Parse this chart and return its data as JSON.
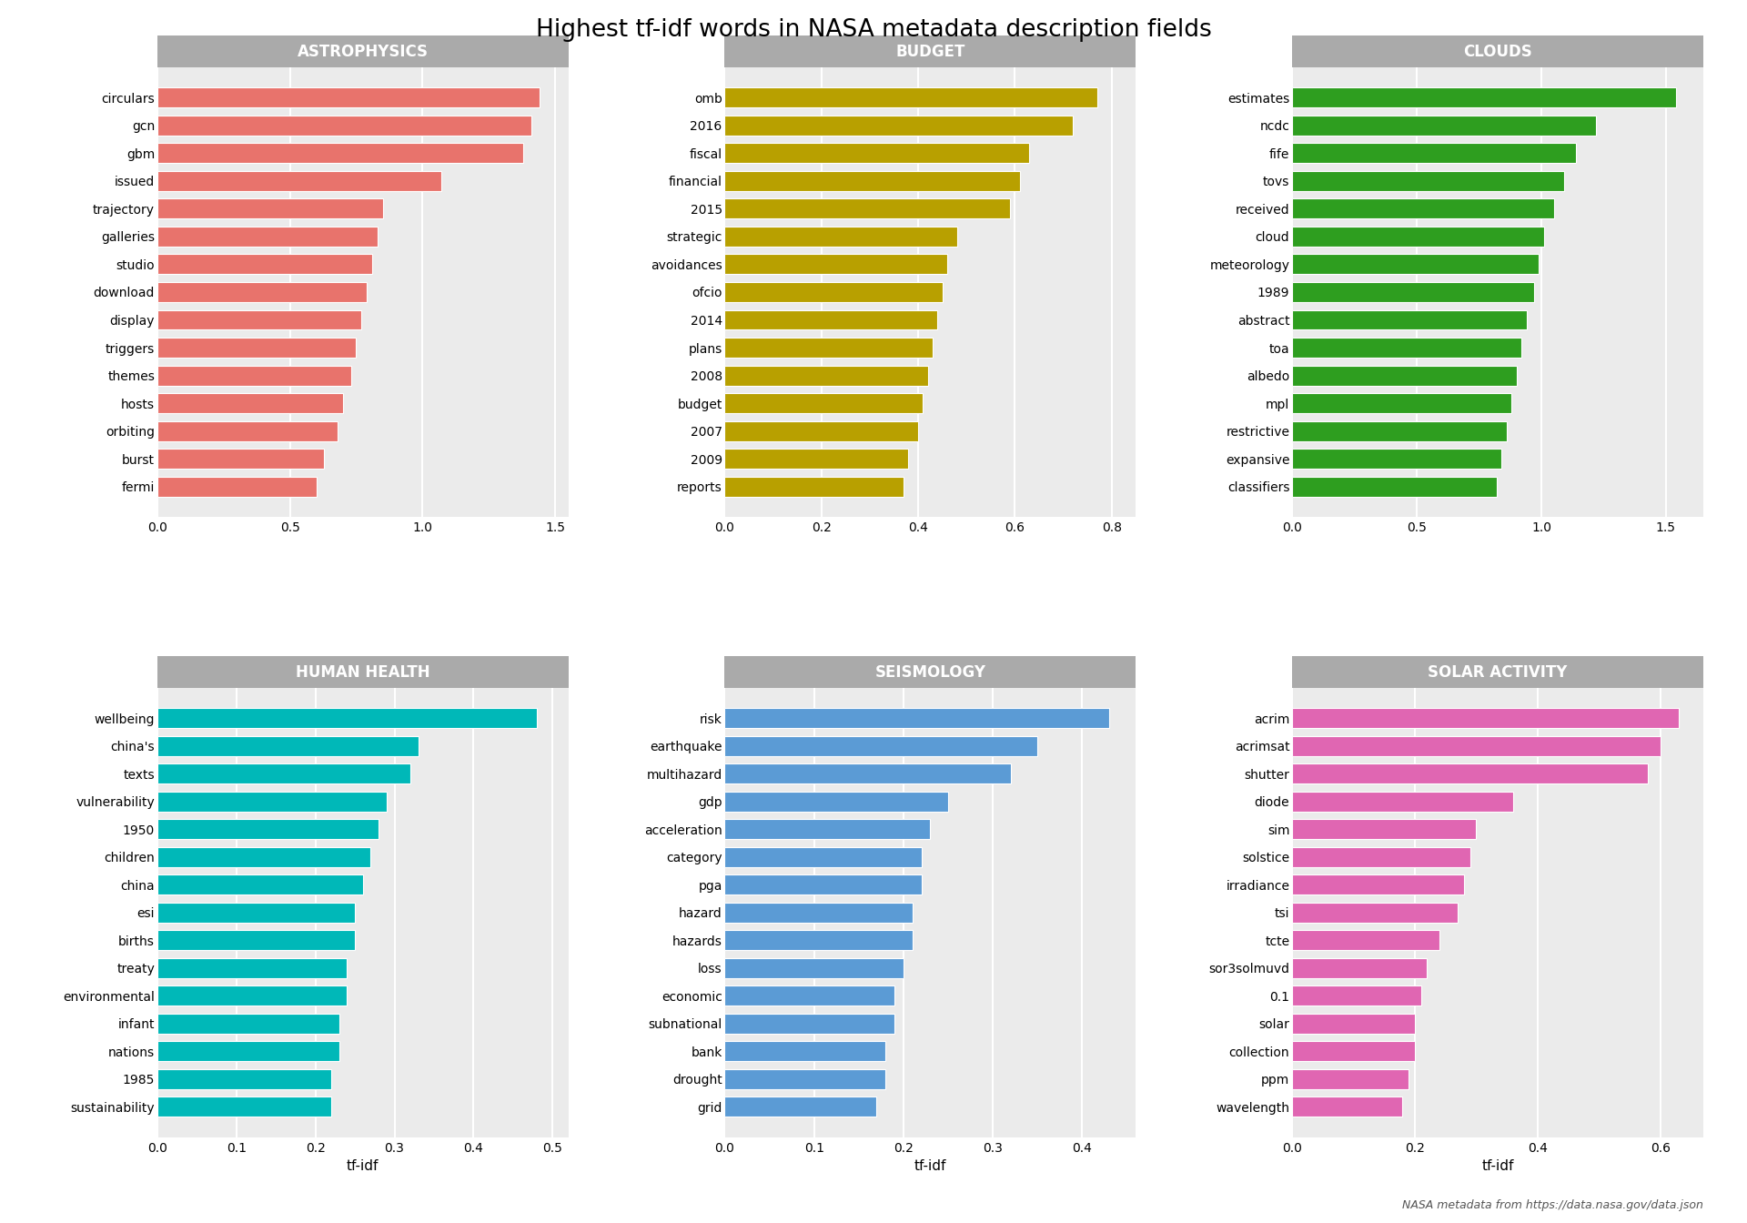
{
  "title": "Highest tf-idf words in NASA metadata description fields",
  "xlabel": "tf-idf",
  "footnote": "NASA metadata from https://data.nasa.gov/data.json",
  "subplots": [
    {
      "title": "ASTROPHYSICS",
      "color": "#E8736C",
      "xlim": [
        0,
        1.55
      ],
      "xticks": [
        0.0,
        0.5,
        1.0,
        1.5
      ],
      "words": [
        "fermi",
        "burst",
        "orbiting",
        "hosts",
        "themes",
        "triggers",
        "display",
        "download",
        "studio",
        "galleries",
        "trajectory",
        "issued",
        "gbm",
        "gcn",
        "circulars"
      ],
      "values": [
        0.6,
        0.63,
        0.68,
        0.7,
        0.73,
        0.75,
        0.77,
        0.79,
        0.81,
        0.83,
        0.85,
        1.07,
        1.38,
        1.41,
        1.44
      ]
    },
    {
      "title": "BUDGET",
      "color": "#B8A000",
      "xlim": [
        0,
        0.85
      ],
      "xticks": [
        0.0,
        0.2,
        0.4,
        0.6,
        0.8
      ],
      "words": [
        "reports",
        "2009",
        "2007",
        "budget",
        "2008",
        "plans",
        "2014",
        "ofcio",
        "avoidances",
        "strategic",
        "2015",
        "financial",
        "fiscal",
        "2016",
        "omb"
      ],
      "values": [
        0.37,
        0.38,
        0.4,
        0.41,
        0.42,
        0.43,
        0.44,
        0.45,
        0.46,
        0.48,
        0.59,
        0.61,
        0.63,
        0.72,
        0.77
      ]
    },
    {
      "title": "CLOUDS",
      "color": "#2E9E1F",
      "xlim": [
        0,
        1.65
      ],
      "xticks": [
        0.0,
        0.5,
        1.0,
        1.5
      ],
      "words": [
        "classifiers",
        "expansive",
        "restrictive",
        "mpl",
        "albedo",
        "toa",
        "abstract",
        "1989",
        "meteorology",
        "cloud",
        "received",
        "tovs",
        "fife",
        "ncdc",
        "estimates"
      ],
      "values": [
        0.82,
        0.84,
        0.86,
        0.88,
        0.9,
        0.92,
        0.94,
        0.97,
        0.99,
        1.01,
        1.05,
        1.09,
        1.14,
        1.22,
        1.54
      ]
    },
    {
      "title": "HUMAN HEALTH",
      "color": "#00B8B8",
      "xlim": [
        0,
        0.52
      ],
      "xticks": [
        0.0,
        0.1,
        0.2,
        0.3,
        0.4,
        0.5
      ],
      "words": [
        "sustainability",
        "1985",
        "nations",
        "infant",
        "environmental",
        "treaty",
        "births",
        "esi",
        "china",
        "children",
        "1950",
        "vulnerability",
        "texts",
        "china's",
        "wellbeing"
      ],
      "values": [
        0.22,
        0.22,
        0.23,
        0.23,
        0.24,
        0.24,
        0.25,
        0.25,
        0.26,
        0.27,
        0.28,
        0.29,
        0.32,
        0.33,
        0.48
      ]
    },
    {
      "title": "SEISMOLOGY",
      "color": "#5B9BD5",
      "xlim": [
        0,
        0.46
      ],
      "xticks": [
        0.0,
        0.1,
        0.2,
        0.3,
        0.4
      ],
      "words": [
        "grid",
        "drought",
        "bank",
        "subnational",
        "economic",
        "loss",
        "hazards",
        "hazard",
        "pga",
        "category",
        "acceleration",
        "gdp",
        "multihazard",
        "earthquake",
        "risk"
      ],
      "values": [
        0.17,
        0.18,
        0.18,
        0.19,
        0.19,
        0.2,
        0.21,
        0.21,
        0.22,
        0.22,
        0.23,
        0.25,
        0.32,
        0.35,
        0.43
      ]
    },
    {
      "title": "SOLAR ACTIVITY",
      "color": "#E066B2",
      "xlim": [
        0,
        0.67
      ],
      "xticks": [
        0.0,
        0.2,
        0.4,
        0.6
      ],
      "words": [
        "wavelength",
        "ppm",
        "collection",
        "solar",
        "0.1",
        "sor3solmuvd",
        "tcte",
        "tsi",
        "irradiance",
        "solstice",
        "sim",
        "diode",
        "shutter",
        "acrimsat",
        "acrim"
      ],
      "values": [
        0.18,
        0.19,
        0.2,
        0.2,
        0.21,
        0.22,
        0.24,
        0.27,
        0.28,
        0.29,
        0.3,
        0.36,
        0.58,
        0.6,
        0.63
      ]
    }
  ],
  "bg_color": "#EBEBEB",
  "grid_color": "white",
  "title_strip_color": "#AAAAAA",
  "fig_bg": "white"
}
